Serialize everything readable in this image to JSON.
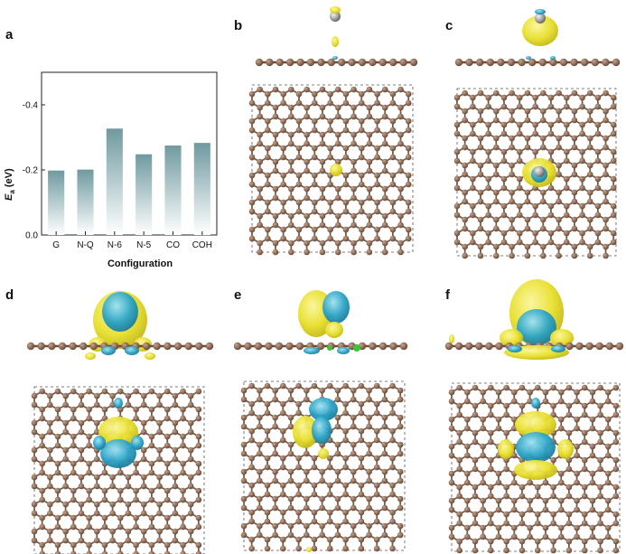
{
  "panels": {
    "a": "a",
    "b": "b",
    "c": "c",
    "d": "d",
    "e": "e",
    "f": "f"
  },
  "chart_data": {
    "type": "bar",
    "title": "",
    "categories": [
      "G",
      "N-Q",
      "N-6",
      "N-5",
      "CO",
      "COH"
    ],
    "values": [
      -0.198,
      -0.201,
      -0.327,
      -0.248,
      -0.275,
      -0.283
    ],
    "xlabel": "Configuration",
    "ylabel_symbol": "E",
    "ylabel_subscript": "a",
    "ylabel_unit": "(eV)",
    "ylim": [
      0.0,
      -0.5
    ],
    "yticks": [
      "-0.4",
      "-0.2",
      "0.0"
    ],
    "ytick_values": [
      -0.4,
      -0.2,
      0.0
    ],
    "inverted_y": true,
    "grid": false,
    "bar_gradient": [
      "#6f9aa0",
      "#ffffff"
    ]
  },
  "colors": {
    "carbon": "#8b6a55",
    "carbon_bond": "#7a5a46",
    "charge_yellow": "#e8df2a",
    "charge_cyan": "#2aa3c7",
    "adsorbate": "#9a9a9a"
  }
}
